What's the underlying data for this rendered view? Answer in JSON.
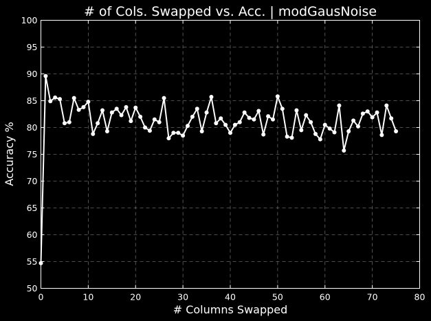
{
  "chart_data": {
    "type": "line",
    "title": "# of Cols. Swapped vs. Acc. | modGausNoise",
    "xlabel": "# Columns Swapped",
    "ylabel": "Accuracy %",
    "xlim": [
      0,
      80
    ],
    "ylim": [
      50,
      100
    ],
    "xticks": [
      0,
      10,
      20,
      30,
      40,
      50,
      60,
      70,
      80
    ],
    "yticks": [
      50,
      55,
      60,
      65,
      70,
      75,
      80,
      85,
      90,
      95,
      100
    ],
    "grid": true,
    "background": "#000000",
    "foreground": "#ffffff",
    "series": [
      {
        "color": "#ffffff",
        "marker": "circle",
        "x": [
          0,
          1,
          2,
          3,
          4,
          5,
          6,
          7,
          8,
          9,
          10,
          11,
          12,
          13,
          14,
          15,
          16,
          17,
          18,
          19,
          20,
          21,
          22,
          23,
          24,
          25,
          26,
          27,
          28,
          29,
          30,
          31,
          32,
          33,
          34,
          35,
          36,
          37,
          38,
          39,
          40,
          41,
          42,
          43,
          44,
          45,
          46,
          47,
          48,
          49,
          50,
          51,
          52,
          53,
          54,
          55,
          56,
          57,
          58,
          59,
          60,
          61,
          62,
          63,
          64,
          65,
          66,
          67,
          68,
          69,
          70,
          71,
          72,
          73,
          74,
          75
        ],
        "y": [
          54.7,
          89.6,
          84.9,
          85.6,
          85.3,
          80.8,
          81.0,
          85.5,
          83.3,
          83.8,
          84.8,
          78.8,
          80.8,
          83.2,
          79.3,
          82.8,
          83.5,
          82.3,
          83.8,
          81.2,
          83.7,
          82.0,
          80.0,
          79.4,
          81.5,
          81.0,
          85.5,
          78.0,
          79.0,
          79.0,
          78.5,
          80.3,
          82.0,
          83.5,
          79.3,
          82.8,
          85.7,
          80.8,
          81.7,
          80.5,
          79.0,
          80.5,
          81.0,
          82.8,
          81.8,
          81.5,
          83.1,
          78.7,
          82.1,
          81.5,
          85.8,
          83.5,
          78.3,
          78.1,
          83.2,
          79.5,
          82.3,
          81.0,
          78.8,
          77.8,
          80.5,
          79.8,
          79.1,
          84.1,
          75.7,
          79.3,
          81.3,
          80.2,
          82.6,
          83.0,
          81.9,
          82.8,
          78.6,
          84.1,
          81.7,
          79.3
        ]
      }
    ]
  }
}
